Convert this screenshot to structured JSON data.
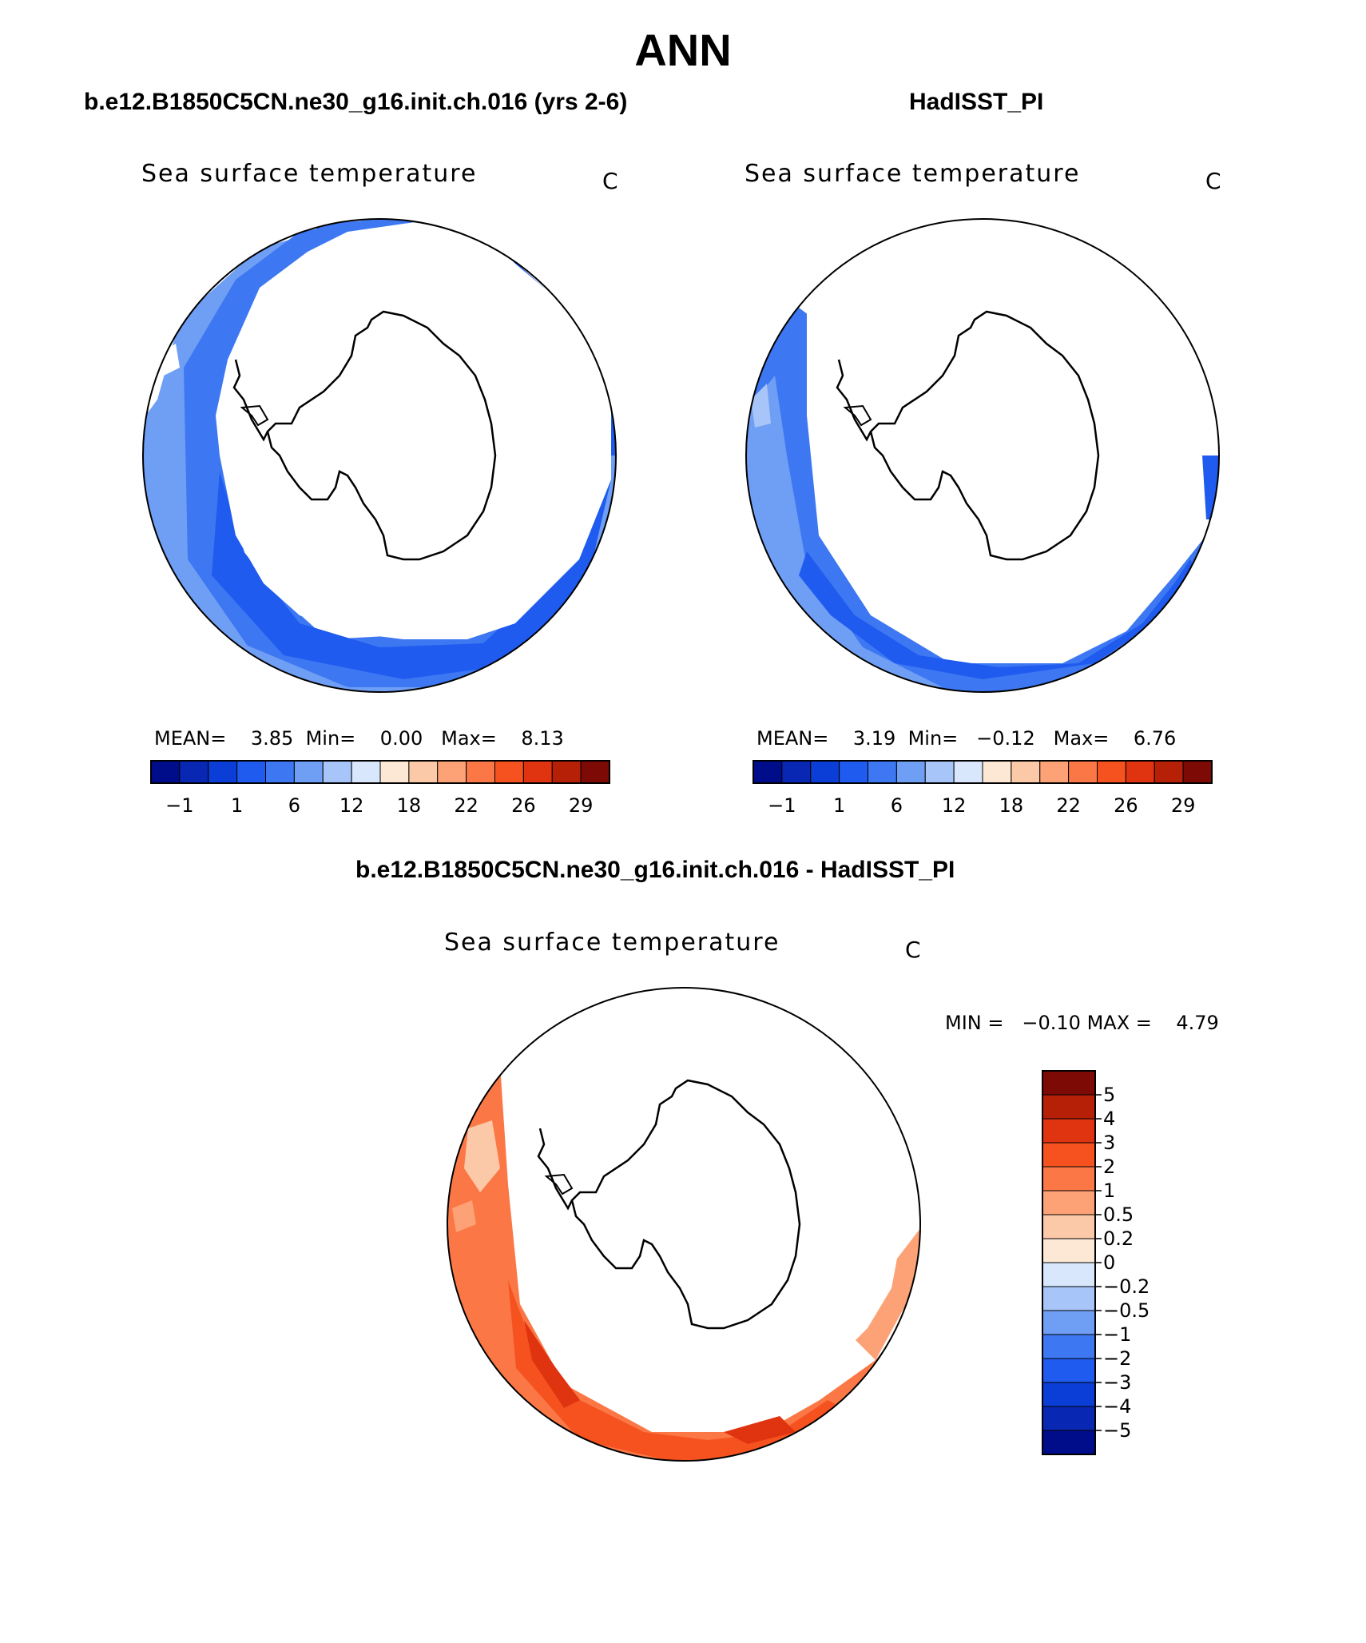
{
  "title": "ANN",
  "panels": [
    {
      "case_name": "b.e12.B1850C5CN.ne30_g16.init.ch.016 (yrs 2-6)",
      "variable": "Sea surface temperature",
      "units": "C",
      "stats": {
        "mean_label": "MEAN=",
        "mean": "3.85",
        "min_label": "Min=",
        "min": "0.00",
        "max_label": "Max=",
        "max": "8.13"
      }
    },
    {
      "case_name": "HadISST_PI",
      "variable": "Sea surface temperature",
      "units": "C",
      "stats": {
        "mean_label": "MEAN=",
        "mean": "3.19",
        "min_label": "Min=",
        "min": "−0.12",
        "max_label": "Max=",
        "max": "6.76"
      }
    }
  ],
  "diff_panel": {
    "case_name": "b.e12.B1850C5CN.ne30_g16.init.ch.016 - HadISST_PI",
    "variable": "Sea surface temperature",
    "units": "C",
    "stats": {
      "min_label": "MIN =",
      "min": "−0.10",
      "max_label": "MAX =",
      "max": "4.79"
    }
  },
  "chart_data": [
    {
      "type": "heatmap",
      "projection": "south-polar-stereographic",
      "title": "Sea surface temperature",
      "units": "C",
      "colorbar": {
        "orientation": "horizontal",
        "levels_shown": [
          "−1",
          "1",
          "6",
          "12",
          "18",
          "22",
          "26",
          "29"
        ],
        "colors": [
          "#000d8a",
          "#0828b3",
          "#0a3ed6",
          "#1f5bef",
          "#3d78f2",
          "#6f9ef5",
          "#a7c5f8",
          "#d8e7fb",
          "#fde8d6",
          "#fcc9a8",
          "#fca276",
          "#fb7846",
          "#f55220",
          "#e03410",
          "#b52006",
          "#7d0a04"
        ]
      }
    },
    {
      "type": "heatmap",
      "projection": "south-polar-stereographic",
      "title": "Sea surface temperature",
      "units": "C",
      "colorbar": {
        "orientation": "horizontal",
        "levels_shown": [
          "−1",
          "1",
          "6",
          "12",
          "18",
          "22",
          "26",
          "29"
        ],
        "colors": [
          "#000d8a",
          "#0828b3",
          "#0a3ed6",
          "#1f5bef",
          "#3d78f2",
          "#6f9ef5",
          "#a7c5f8",
          "#d8e7fb",
          "#fde8d6",
          "#fcc9a8",
          "#fca276",
          "#fb7846",
          "#f55220",
          "#e03410",
          "#b52006",
          "#7d0a04"
        ]
      }
    },
    {
      "type": "heatmap",
      "projection": "south-polar-stereographic",
      "title": "Sea surface temperature",
      "units": "C",
      "colorbar": {
        "orientation": "vertical",
        "levels": [
          "5",
          "4",
          "3",
          "2",
          "1",
          "0.5",
          "0.2",
          "0",
          "−0.2",
          "−0.5",
          "−1",
          "−2",
          "−3",
          "−4",
          "−5"
        ],
        "colors": [
          "#7d0a04",
          "#b52006",
          "#e03410",
          "#f55220",
          "#fb7846",
          "#fca276",
          "#fcc9a8",
          "#fde8d6",
          "#d8e7fb",
          "#a7c5f8",
          "#6f9ef5",
          "#3d78f2",
          "#1f5bef",
          "#0a3ed6",
          "#0828b3",
          "#000d8a"
        ]
      }
    }
  ]
}
